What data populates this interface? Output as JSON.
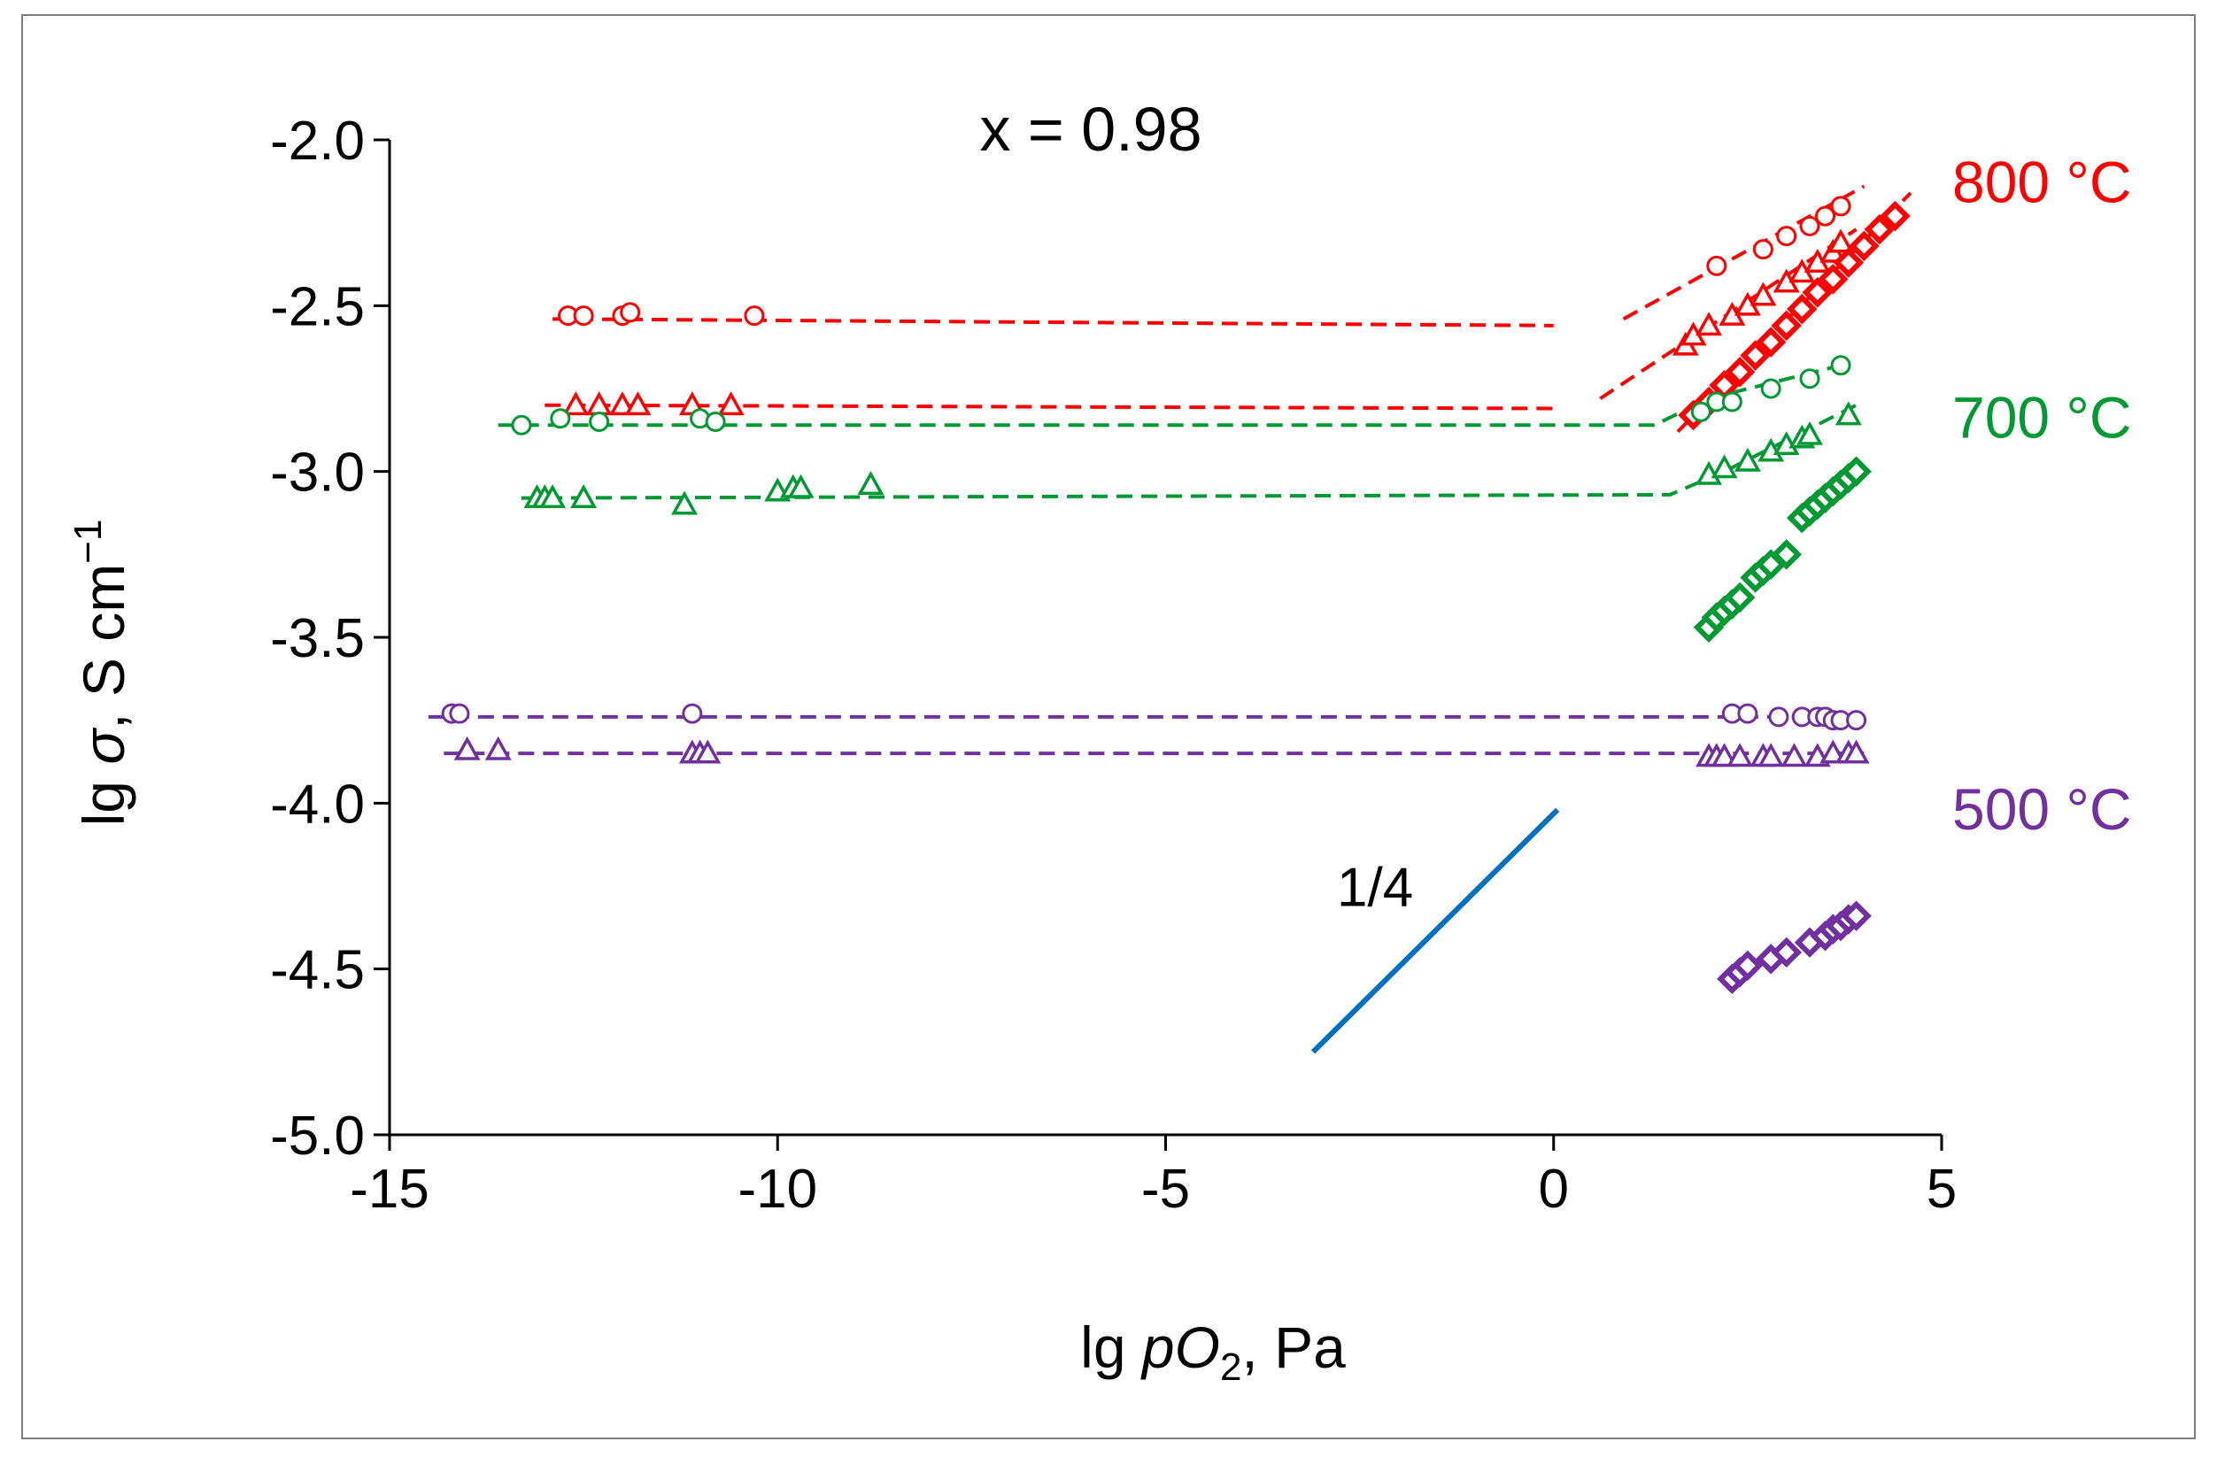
{
  "chart_data": {
    "type": "scatter",
    "title": "x = 0.98",
    "xlabel": {
      "prefix": "lg ",
      "italic": "pO",
      "sub": "2",
      "suffix": ", Pa"
    },
    "ylabel": {
      "prefix": "lg ",
      "italic": "σ",
      "suffix": ", S cm",
      "sup": "−1"
    },
    "xlim": [
      -15,
      5
    ],
    "ylim": [
      -5.0,
      -2.0
    ],
    "x_ticks": [
      "-15",
      "-10",
      "-5",
      "0",
      "5"
    ],
    "y_ticks": [
      "-2.0",
      "-2.5",
      "-3.0",
      "-3.5",
      "-4.0",
      "-4.5",
      "-5.0"
    ],
    "grid": false,
    "colors": {
      "red": "#ff0000",
      "green": "#009933",
      "purple": "#7030a0",
      "blue": "#0070c0",
      "frame": "#7f7f7f"
    },
    "temperature_labels": [
      {
        "text": "800 °C",
        "color": "red",
        "y": -2.13
      },
      {
        "text": "700 °C",
        "color": "green",
        "y": -2.84
      },
      {
        "text": "500 °C",
        "color": "purple",
        "y": -4.02
      }
    ],
    "slope_annotation": {
      "text": "1/4",
      "line": [
        [
          -3.1,
          -4.75
        ],
        [
          0.05,
          -4.02
        ]
      ],
      "text_at": [
        -2.3,
        -4.31
      ],
      "color": "blue"
    },
    "fit_lines": [
      {
        "name": "800 °C circles plateau",
        "color": "red",
        "points": [
          [
            -12.9,
            -2.54
          ],
          [
            0.0,
            -2.56
          ]
        ]
      },
      {
        "name": "800 °C circles high-pO2",
        "color": "red",
        "points": [
          [
            0.9,
            -2.54
          ],
          [
            4.0,
            -2.14
          ]
        ]
      },
      {
        "name": "800 °C triangles plateau",
        "color": "red",
        "points": [
          [
            -13.0,
            -2.8
          ],
          [
            0.0,
            -2.81
          ]
        ]
      },
      {
        "name": "800 °C triangles high-pO2",
        "color": "red",
        "points": [
          [
            0.6,
            -2.78
          ],
          [
            3.9,
            -2.27
          ]
        ]
      },
      {
        "name": "800 °C diamonds",
        "color": "red",
        "points": [
          [
            1.6,
            -2.88
          ],
          [
            4.6,
            -2.16
          ]
        ]
      },
      {
        "name": "700 °C circles",
        "color": "green",
        "points": [
          [
            -13.6,
            -2.86
          ],
          [
            1.3,
            -2.86
          ],
          [
            2.0,
            -2.78
          ],
          [
            3.7,
            -2.68
          ]
        ]
      },
      {
        "name": "700 °C triangles",
        "color": "green",
        "points": [
          [
            -13.3,
            -3.08
          ],
          [
            1.5,
            -3.07
          ],
          [
            2.2,
            -3.0
          ],
          [
            3.9,
            -2.8
          ]
        ]
      },
      {
        "name": "500 °C circles",
        "color": "purple",
        "points": [
          [
            -14.5,
            -3.74
          ],
          [
            4.0,
            -3.74
          ]
        ]
      },
      {
        "name": "500 °C triangles",
        "color": "purple",
        "points": [
          [
            -14.3,
            -3.85
          ],
          [
            4.0,
            -3.85
          ]
        ]
      }
    ],
    "series": [
      {
        "name": "800 °C circles",
        "color": "red",
        "marker": "circle",
        "x": [
          -12.7,
          -12.5,
          -12.0,
          -11.9,
          -10.3,
          2.1,
          2.7,
          3.0,
          3.3,
          3.5,
          3.7
        ],
        "y": [
          -2.53,
          -2.53,
          -2.53,
          -2.52,
          -2.53,
          -2.38,
          -2.33,
          -2.29,
          -2.26,
          -2.23,
          -2.2
        ]
      },
      {
        "name": "800 °C triangles",
        "color": "red",
        "marker": "triangle",
        "x": [
          -12.6,
          -12.3,
          -12.0,
          -11.8,
          -11.1,
          -10.6,
          1.7,
          1.8,
          2.0,
          2.3,
          2.5,
          2.7,
          3.0,
          3.2,
          3.4,
          3.6,
          3.7
        ],
        "y": [
          -2.8,
          -2.8,
          -2.8,
          -2.8,
          -2.8,
          -2.8,
          -2.62,
          -2.59,
          -2.56,
          -2.53,
          -2.5,
          -2.47,
          -2.43,
          -2.4,
          -2.37,
          -2.34,
          -2.31
        ]
      },
      {
        "name": "800 °C diamonds",
        "color": "red",
        "marker": "diamond",
        "x": [
          1.8,
          2.0,
          2.2,
          2.4,
          2.6,
          2.8,
          3.0,
          3.2,
          3.4,
          3.6,
          3.8,
          4.0,
          4.2,
          4.4
        ],
        "y": [
          -2.83,
          -2.79,
          -2.74,
          -2.7,
          -2.65,
          -2.61,
          -2.56,
          -2.51,
          -2.46,
          -2.42,
          -2.37,
          -2.32,
          -2.27,
          -2.23
        ]
      },
      {
        "name": "700 °C circles",
        "color": "green",
        "marker": "circle",
        "x": [
          -13.3,
          -12.8,
          -12.3,
          -11.0,
          -10.8,
          1.9,
          2.1,
          2.3,
          2.8,
          3.3,
          3.7
        ],
        "y": [
          -2.86,
          -2.84,
          -2.85,
          -2.84,
          -2.85,
          -2.82,
          -2.79,
          -2.79,
          -2.75,
          -2.72,
          -2.68
        ]
      },
      {
        "name": "700 °C triangles",
        "color": "green",
        "marker": "triangle",
        "x": [
          -13.1,
          -13.0,
          -12.9,
          -12.5,
          -11.2,
          -10.0,
          -9.8,
          -9.7,
          -8.8,
          2.0,
          2.2,
          2.5,
          2.8,
          3.0,
          3.2,
          3.3,
          3.8
        ],
        "y": [
          -3.08,
          -3.08,
          -3.08,
          -3.08,
          -3.1,
          -3.06,
          -3.05,
          -3.05,
          -3.04,
          -3.01,
          -2.99,
          -2.97,
          -2.94,
          -2.92,
          -2.9,
          -2.89,
          -2.83
        ]
      },
      {
        "name": "700 °C diamonds",
        "color": "green",
        "marker": "diamond",
        "x": [
          2.0,
          2.1,
          2.2,
          2.3,
          2.4,
          2.6,
          2.7,
          2.8,
          3.0,
          3.2,
          3.3,
          3.4,
          3.5,
          3.6,
          3.7,
          3.8,
          3.9
        ],
        "y": [
          -3.47,
          -3.44,
          -3.42,
          -3.4,
          -3.38,
          -3.32,
          -3.3,
          -3.28,
          -3.25,
          -3.14,
          -3.12,
          -3.1,
          -3.08,
          -3.06,
          -3.04,
          -3.02,
          -3.0
        ]
      },
      {
        "name": "500 °C circles",
        "color": "purple",
        "marker": "circle",
        "x": [
          -14.2,
          -14.1,
          -11.1,
          2.3,
          2.5,
          2.9,
          3.2,
          3.4,
          3.5,
          3.6,
          3.7,
          3.9
        ],
        "y": [
          -3.73,
          -3.73,
          -3.73,
          -3.73,
          -3.73,
          -3.74,
          -3.74,
          -3.74,
          -3.74,
          -3.75,
          -3.75,
          -3.75
        ]
      },
      {
        "name": "500 °C triangles",
        "color": "purple",
        "marker": "triangle",
        "x": [
          -14.0,
          -13.6,
          -11.1,
          -11.0,
          -10.9,
          2.0,
          2.1,
          2.2,
          2.4,
          2.7,
          2.8,
          3.1,
          3.4,
          3.6,
          3.8,
          3.9
        ],
        "y": [
          -3.84,
          -3.84,
          -3.85,
          -3.85,
          -3.85,
          -3.86,
          -3.86,
          -3.86,
          -3.86,
          -3.86,
          -3.86,
          -3.86,
          -3.86,
          -3.85,
          -3.85,
          -3.85
        ]
      },
      {
        "name": "500 °C diamonds",
        "color": "purple",
        "marker": "diamond",
        "x": [
          2.3,
          2.4,
          2.5,
          2.8,
          3.0,
          3.3,
          3.5,
          3.6,
          3.7,
          3.8,
          3.9
        ],
        "y": [
          -4.53,
          -4.51,
          -4.49,
          -4.47,
          -4.45,
          -4.42,
          -4.4,
          -4.38,
          -4.37,
          -4.35,
          -4.34
        ]
      }
    ]
  }
}
